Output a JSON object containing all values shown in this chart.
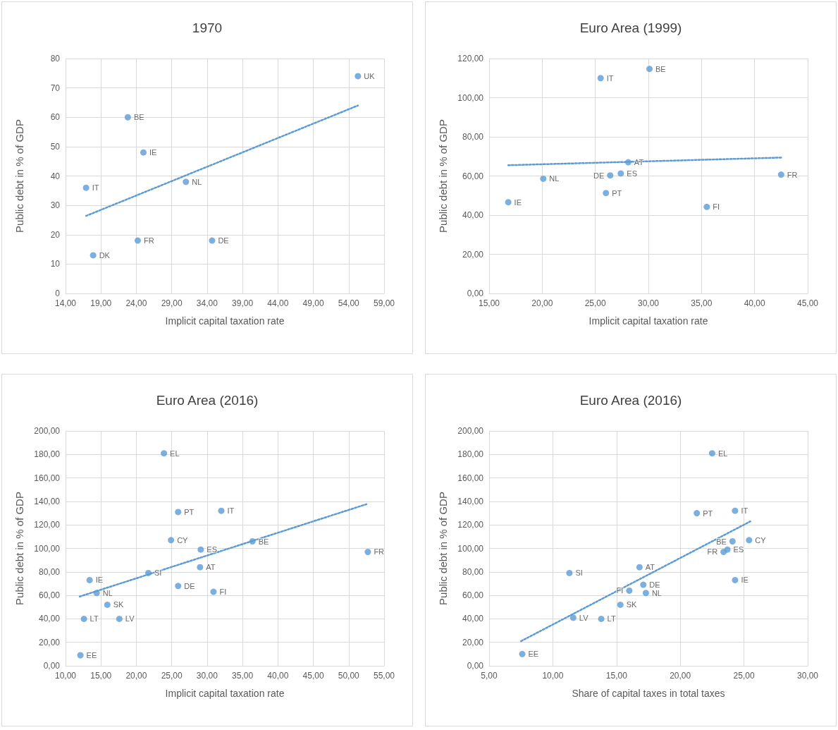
{
  "chart_data": [
    {
      "type": "scatter",
      "title": "1970",
      "xlabel": "Implicit capital taxation rate",
      "ylabel": "Public debt in % of GDP",
      "marker": "circle",
      "grid": true,
      "xlim": [
        14,
        59
      ],
      "xticks": [
        {
          "value": 14,
          "label": "14,00"
        },
        {
          "value": 19,
          "label": "19,00"
        },
        {
          "value": 24,
          "label": "24,00"
        },
        {
          "value": 29,
          "label": "29,00"
        },
        {
          "value": 34,
          "label": "34,00"
        },
        {
          "value": 39,
          "label": "39,00"
        },
        {
          "value": 44,
          "label": "44,00"
        },
        {
          "value": 49,
          "label": "49,00"
        },
        {
          "value": 54,
          "label": "54,00"
        },
        {
          "value": 59,
          "label": "59,00"
        }
      ],
      "ylim": [
        0,
        80
      ],
      "yticks": [
        0,
        10,
        20,
        30,
        40,
        50,
        60,
        70,
        80
      ],
      "series": [
        {
          "name": "IT",
          "color": "#5b9bd5",
          "x": [
            16.9
          ],
          "values": [
            36
          ]
        },
        {
          "name": "DK",
          "color": "#5b9bd5",
          "x": [
            17.9
          ],
          "values": [
            13
          ]
        },
        {
          "name": "BE",
          "color": "#5b9bd5",
          "x": [
            22.8
          ],
          "values": [
            60
          ]
        },
        {
          "name": "IE",
          "color": "#5b9bd5",
          "x": [
            25.0
          ],
          "values": [
            48
          ]
        },
        {
          "name": "FR",
          "color": "#5b9bd5",
          "x": [
            24.2
          ],
          "values": [
            18
          ]
        },
        {
          "name": "NL",
          "color": "#5b9bd5",
          "x": [
            31.0
          ],
          "values": [
            38
          ]
        },
        {
          "name": "DE",
          "color": "#5b9bd5",
          "x": [
            34.7
          ],
          "values": [
            18
          ]
        },
        {
          "name": "UK",
          "color": "#5b9bd5",
          "x": [
            55.3
          ],
          "values": [
            74
          ]
        },
        {
          "type": "line",
          "color": "#5b9bd5",
          "marker": "none",
          "line_style": "dotted",
          "x": [
            16.9,
            55.3
          ],
          "values": [
            26.4,
            64
          ]
        }
      ]
    },
    {
      "type": "scatter",
      "title": "Euro Area (1999)",
      "xlabel": "Implicit capital taxation rate",
      "ylabel": "Public debt in % of GDP",
      "marker": "circle",
      "grid": true,
      "xlim": [
        15,
        45
      ],
      "xticks": [
        {
          "value": 15,
          "label": "15,00"
        },
        {
          "value": 20,
          "label": "20,00"
        },
        {
          "value": 25,
          "label": "25,00"
        },
        {
          "value": 30,
          "label": "30,00"
        },
        {
          "value": 35,
          "label": "35,00"
        },
        {
          "value": 40,
          "label": "40,00"
        },
        {
          "value": 45,
          "label": "45,00"
        }
      ],
      "ylim": [
        0,
        120
      ],
      "yticks": [
        {
          "value": 0,
          "label": "0,00"
        },
        {
          "value": 20,
          "label": "20,00"
        },
        {
          "value": 40,
          "label": "40,00"
        },
        {
          "value": 60,
          "label": "60,00"
        },
        {
          "value": 80,
          "label": "80,00"
        },
        {
          "value": 100,
          "label": "100,00"
        },
        {
          "value": 120,
          "label": "120,00"
        }
      ],
      "series": [
        {
          "name": "IE",
          "color": "#5b9bd5",
          "x": [
            16.8
          ],
          "values": [
            46.6
          ]
        },
        {
          "name": "NL",
          "color": "#5b9bd5",
          "x": [
            20.1
          ],
          "values": [
            58.6
          ]
        },
        {
          "name": "IT",
          "color": "#5b9bd5",
          "x": [
            25.5
          ],
          "values": [
            110
          ]
        },
        {
          "name": "PT",
          "color": "#5b9bd5",
          "x": [
            26.0
          ],
          "values": [
            51.3
          ]
        },
        {
          "name": "DE",
          "color": "#5b9bd5",
          "x": [
            26.4
          ],
          "values": [
            60.3
          ]
        },
        {
          "name": "ES",
          "color": "#5b9bd5",
          "x": [
            27.4
          ],
          "values": [
            61.3
          ]
        },
        {
          "name": "AT",
          "color": "#5b9bd5",
          "x": [
            28.1
          ],
          "values": [
            67
          ]
        },
        {
          "name": "BE",
          "color": "#5b9bd5",
          "x": [
            30.1
          ],
          "values": [
            114.7
          ]
        },
        {
          "name": "FI",
          "color": "#5b9bd5",
          "x": [
            35.5
          ],
          "values": [
            44.2
          ]
        },
        {
          "name": "FR",
          "color": "#5b9bd5",
          "x": [
            42.5
          ],
          "values": [
            60.7
          ]
        },
        {
          "type": "line",
          "color": "#5b9bd5",
          "marker": "none",
          "line_style": "dotted",
          "x": [
            16.8,
            42.5
          ],
          "values": [
            65.5,
            69.4
          ]
        }
      ]
    },
    {
      "type": "scatter",
      "title": "Euro Area (2016)",
      "xlabel": "Implicit capital taxation rate",
      "ylabel": "Public debt in % of GDP",
      "marker": "circle",
      "grid": true,
      "xlim": [
        10,
        55
      ],
      "xticks": [
        {
          "value": 10,
          "label": "10,00"
        },
        {
          "value": 15,
          "label": "15,00"
        },
        {
          "value": 20,
          "label": "20,00"
        },
        {
          "value": 25,
          "label": "25,00"
        },
        {
          "value": 30,
          "label": "30,00"
        },
        {
          "value": 35,
          "label": "35,00"
        },
        {
          "value": 40,
          "label": "40,00"
        },
        {
          "value": 45,
          "label": "45,00"
        },
        {
          "value": 50,
          "label": "50,00"
        },
        {
          "value": 55,
          "label": "55,00"
        }
      ],
      "ylim": [
        0,
        200
      ],
      "yticks": [
        {
          "value": 0,
          "label": "0,00"
        },
        {
          "value": 20,
          "label": "20,00"
        },
        {
          "value": 40,
          "label": "40,00"
        },
        {
          "value": 60,
          "label": "60,00"
        },
        {
          "value": 80,
          "label": "80,00"
        },
        {
          "value": 100,
          "label": "100,00"
        },
        {
          "value": 120,
          "label": "120,00"
        },
        {
          "value": 140,
          "label": "140,00"
        },
        {
          "value": 160,
          "label": "160,00"
        },
        {
          "value": 180,
          "label": "180,00"
        },
        {
          "value": 200,
          "label": "200,00"
        }
      ],
      "series": [
        {
          "name": "EL",
          "color": "#5b9bd5",
          "x": [
            23.9
          ],
          "values": [
            181
          ]
        },
        {
          "name": "PT",
          "color": "#5b9bd5",
          "x": [
            25.9
          ],
          "values": [
            131
          ]
        },
        {
          "name": "IT",
          "color": "#5b9bd5",
          "x": [
            32.0
          ],
          "values": [
            132
          ]
        },
        {
          "name": "CY",
          "color": "#5b9bd5",
          "x": [
            24.9
          ],
          "values": [
            107
          ]
        },
        {
          "name": "ES",
          "color": "#5b9bd5",
          "x": [
            29.1
          ],
          "values": [
            99
          ]
        },
        {
          "name": "BE",
          "color": "#5b9bd5",
          "x": [
            36.4
          ],
          "values": [
            106
          ]
        },
        {
          "name": "FR",
          "color": "#5b9bd5",
          "x": [
            52.7
          ],
          "values": [
            97
          ]
        },
        {
          "name": "AT",
          "color": "#5b9bd5",
          "x": [
            29.0
          ],
          "values": [
            84
          ]
        },
        {
          "name": "SI",
          "color": "#5b9bd5",
          "x": [
            21.7
          ],
          "values": [
            79
          ]
        },
        {
          "name": "IE",
          "color": "#5b9bd5",
          "x": [
            13.4
          ],
          "values": [
            73
          ]
        },
        {
          "name": "DE",
          "color": "#5b9bd5",
          "x": [
            25.9
          ],
          "values": [
            68
          ]
        },
        {
          "name": "NL",
          "color": "#5b9bd5",
          "x": [
            14.4
          ],
          "values": [
            62
          ]
        },
        {
          "name": "FI",
          "color": "#5b9bd5",
          "x": [
            30.9
          ],
          "values": [
            63
          ]
        },
        {
          "name": "SK",
          "color": "#5b9bd5",
          "x": [
            15.9
          ],
          "values": [
            52
          ]
        },
        {
          "name": "LT",
          "color": "#5b9bd5",
          "x": [
            12.6
          ],
          "values": [
            40
          ]
        },
        {
          "name": "LV",
          "color": "#5b9bd5",
          "x": [
            17.6
          ],
          "values": [
            40
          ]
        },
        {
          "name": "EE",
          "color": "#5b9bd5",
          "x": [
            12.1
          ],
          "values": [
            9
          ]
        },
        {
          "type": "line",
          "color": "#5b9bd5",
          "marker": "none",
          "line_style": "dotted",
          "x": [
            12.0,
            52.7
          ],
          "values": [
            59,
            138
          ]
        }
      ]
    },
    {
      "type": "scatter",
      "title": "Euro Area (2016)",
      "xlabel": "Share of capital taxes in total taxes",
      "ylabel": "Public debt in % of GDP",
      "marker": "circle",
      "grid": true,
      "xlim": [
        5,
        30
      ],
      "xticks": [
        {
          "value": 5,
          "label": "5,00"
        },
        {
          "value": 10,
          "label": "10,00"
        },
        {
          "value": 15,
          "label": "15,00"
        },
        {
          "value": 20,
          "label": "20,00"
        },
        {
          "value": 25,
          "label": "25,00"
        },
        {
          "value": 30,
          "label": "30,00"
        }
      ],
      "ylim": [
        0,
        200
      ],
      "yticks": [
        {
          "value": 0,
          "label": "0,00"
        },
        {
          "value": 20,
          "label": "20,00"
        },
        {
          "value": 40,
          "label": "40,00"
        },
        {
          "value": 60,
          "label": "60,00"
        },
        {
          "value": 80,
          "label": "80,00"
        },
        {
          "value": 100,
          "label": "100,00"
        },
        {
          "value": 120,
          "label": "120,00"
        },
        {
          "value": 140,
          "label": "140,00"
        },
        {
          "value": 160,
          "label": "160,00"
        },
        {
          "value": 180,
          "label": "180,00"
        },
        {
          "value": 200,
          "label": "200,00"
        }
      ],
      "series": [
        {
          "name": "EL",
          "color": "#5b9bd5",
          "x": [
            22.5
          ],
          "values": [
            181
          ]
        },
        {
          "name": "PT",
          "color": "#5b9bd5",
          "x": [
            21.3
          ],
          "values": [
            130
          ]
        },
        {
          "name": "IT",
          "color": "#5b9bd5",
          "x": [
            24.3
          ],
          "values": [
            132
          ]
        },
        {
          "name": "BE",
          "color": "#5b9bd5",
          "x": [
            24.1
          ],
          "values": [
            106
          ]
        },
        {
          "name": "CY",
          "color": "#5b9bd5",
          "x": [
            25.4
          ],
          "values": [
            107
          ]
        },
        {
          "name": "ES",
          "color": "#5b9bd5",
          "x": [
            23.7
          ],
          "values": [
            99
          ]
        },
        {
          "name": "FR",
          "color": "#5b9bd5",
          "x": [
            23.4
          ],
          "values": [
            97
          ]
        },
        {
          "name": "IE",
          "color": "#5b9bd5",
          "x": [
            24.3
          ],
          "values": [
            73
          ]
        },
        {
          "name": "AT",
          "color": "#5b9bd5",
          "x": [
            16.8
          ],
          "values": [
            84
          ]
        },
        {
          "name": "SI",
          "color": "#5b9bd5",
          "x": [
            11.3
          ],
          "values": [
            79
          ]
        },
        {
          "name": "DE",
          "color": "#5b9bd5",
          "x": [
            17.1
          ],
          "values": [
            69
          ]
        },
        {
          "name": "FI",
          "color": "#5b9bd5",
          "x": [
            16.0
          ],
          "values": [
            64
          ]
        },
        {
          "name": "NL",
          "color": "#5b9bd5",
          "x": [
            17.3
          ],
          "values": [
            62
          ]
        },
        {
          "name": "SK",
          "color": "#5b9bd5",
          "x": [
            15.3
          ],
          "values": [
            52
          ]
        },
        {
          "name": "LV",
          "color": "#5b9bd5",
          "x": [
            11.6
          ],
          "values": [
            41
          ]
        },
        {
          "name": "LT",
          "color": "#5b9bd5",
          "x": [
            13.8
          ],
          "values": [
            40
          ]
        },
        {
          "name": "EE",
          "color": "#5b9bd5",
          "x": [
            7.6
          ],
          "values": [
            10
          ]
        },
        {
          "type": "line",
          "color": "#5b9bd5",
          "marker": "none",
          "line_style": "dotted",
          "x": [
            7.5,
            25.5
          ],
          "values": [
            21,
            123
          ]
        }
      ]
    }
  ]
}
